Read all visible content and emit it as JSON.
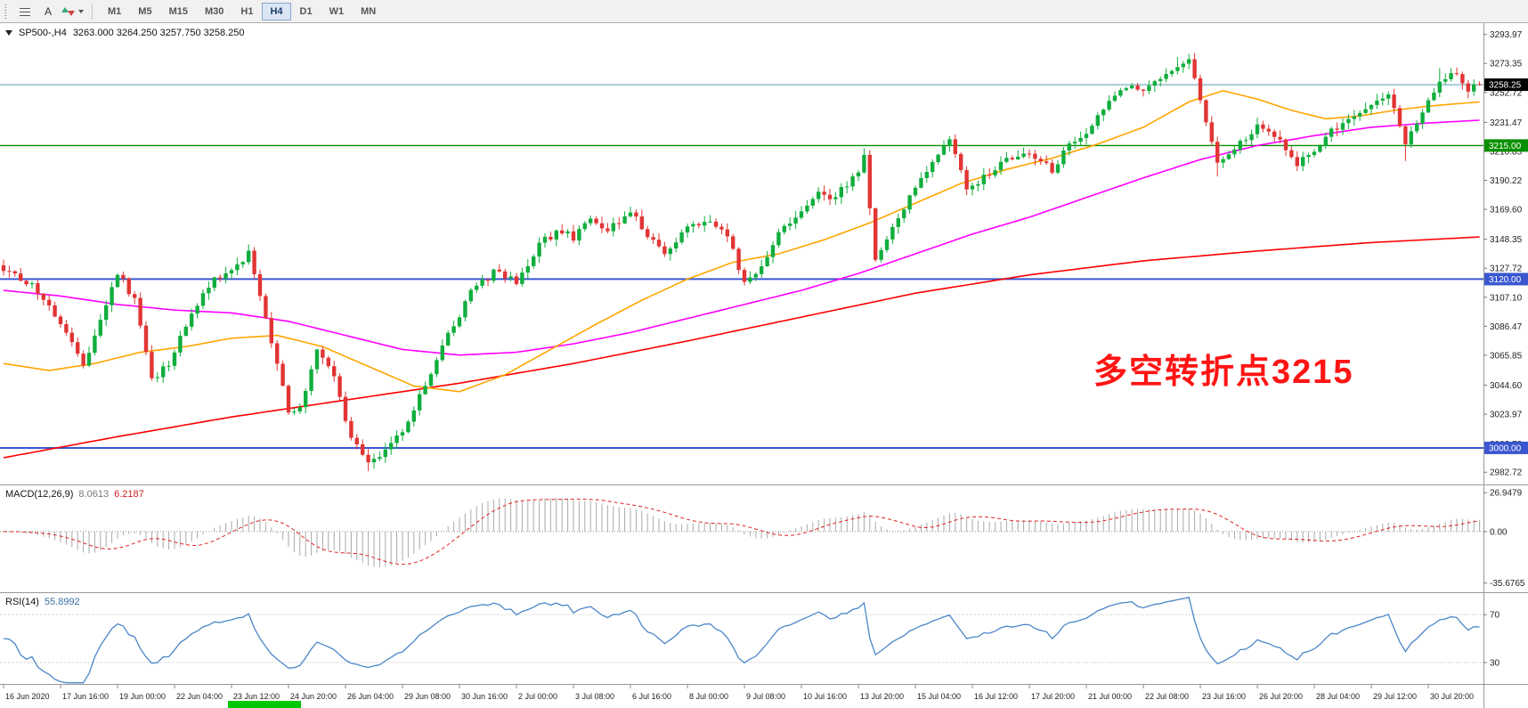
{
  "toolbar": {
    "text_tool_label": "A",
    "timeframes": [
      "M1",
      "M5",
      "M15",
      "M30",
      "H1",
      "H4",
      "D1",
      "W1",
      "MN"
    ],
    "active_timeframe": "H4"
  },
  "chart": {
    "symbol": "SP500-,H4",
    "ohlc": "3263.000 3264.250 3257.750 3258.250",
    "annotation": {
      "text": "多空转折点3215",
      "color": "#ff1414"
    },
    "current_price": {
      "label": "3258.25",
      "value": 3258.25,
      "line_color": "#569bad",
      "badge_color": "#000000"
    },
    "hlines": [
      {
        "value": 3215.0,
        "label": "3215.00",
        "color": "#089000",
        "width": 1.4
      },
      {
        "value": 3120.0,
        "label": "3120.00",
        "color": "#3a57d0",
        "width": 2
      },
      {
        "value": 3000.0,
        "label": "3000.00",
        "color": "#3a57d0",
        "width": 2
      }
    ],
    "axis_labels": [
      "3293.97",
      "3273.35",
      "3252.72",
      "3231.47",
      "3210.85",
      "3190.22",
      "3169.60",
      "3148.35",
      "3127.72",
      "3107.10",
      "3086.47",
      "3065.85",
      "3044.60",
      "3023.97",
      "3002.72",
      "2982.72"
    ],
    "candle_up_color": "#10ae3e",
    "candle_down_color": "#e23434",
    "ma_colors": {
      "fast": "#ffa500",
      "mid": "#ff00ff",
      "slow": "#ff0000"
    }
  },
  "chart_data": {
    "type": "candlestick",
    "symbol": "SP500-",
    "timeframe": "H4",
    "ohlc_current": {
      "open": 3263.0,
      "high": 3264.25,
      "low": 3257.75,
      "close": 3258.25
    },
    "bars": 260,
    "ylim": [
      2974,
      3302
    ],
    "last_close": 3258.25,
    "price_anchors": [
      [
        0,
        3128
      ],
      [
        3,
        3120
      ],
      [
        6,
        3112
      ],
      [
        10,
        3090
      ],
      [
        14,
        3058
      ],
      [
        17,
        3090
      ],
      [
        20,
        3125
      ],
      [
        23,
        3105
      ],
      [
        26,
        3048
      ],
      [
        29,
        3060
      ],
      [
        33,
        3095
      ],
      [
        37,
        3120
      ],
      [
        40,
        3128
      ],
      [
        43,
        3138
      ],
      [
        45,
        3110
      ],
      [
        48,
        3060
      ],
      [
        50,
        3025
      ],
      [
        52,
        3030
      ],
      [
        55,
        3068
      ],
      [
        58,
        3050
      ],
      [
        61,
        3005
      ],
      [
        64,
        2992
      ],
      [
        67,
        2998
      ],
      [
        70,
        3012
      ],
      [
        74,
        3045
      ],
      [
        78,
        3080
      ],
      [
        82,
        3110
      ],
      [
        86,
        3125
      ],
      [
        90,
        3118
      ],
      [
        94,
        3145
      ],
      [
        98,
        3155
      ],
      [
        100,
        3150
      ],
      [
        103,
        3162
      ],
      [
        106,
        3155
      ],
      [
        110,
        3168
      ],
      [
        113,
        3150
      ],
      [
        116,
        3140
      ],
      [
        120,
        3155
      ],
      [
        124,
        3162
      ],
      [
        127,
        3150
      ],
      [
        130,
        3118
      ],
      [
        133,
        3130
      ],
      [
        136,
        3152
      ],
      [
        140,
        3170
      ],
      [
        143,
        3182
      ],
      [
        146,
        3178
      ],
      [
        150,
        3198
      ],
      [
        151,
        3208
      ],
      [
        153,
        3135
      ],
      [
        156,
        3155
      ],
      [
        160,
        3185
      ],
      [
        163,
        3205
      ],
      [
        166,
        3218
      ],
      [
        169,
        3185
      ],
      [
        172,
        3192
      ],
      [
        176,
        3205
      ],
      [
        180,
        3210
      ],
      [
        184,
        3198
      ],
      [
        187,
        3215
      ],
      [
        190,
        3225
      ],
      [
        194,
        3245
      ],
      [
        197,
        3258
      ],
      [
        200,
        3252
      ],
      [
        203,
        3262
      ],
      [
        206,
        3272
      ],
      [
        208,
        3278
      ],
      [
        210,
        3245
      ],
      [
        213,
        3205
      ],
      [
        216,
        3212
      ],
      [
        220,
        3228
      ],
      [
        224,
        3218
      ],
      [
        227,
        3202
      ],
      [
        230,
        3212
      ],
      [
        233,
        3225
      ],
      [
        236,
        3232
      ],
      [
        240,
        3245
      ],
      [
        243,
        3252
      ],
      [
        246,
        3215
      ],
      [
        249,
        3240
      ],
      [
        252,
        3262
      ],
      [
        255,
        3268
      ],
      [
        257,
        3255
      ],
      [
        259,
        3258.25
      ]
    ],
    "high_overrides": [
      [
        151,
        3213
      ],
      [
        206,
        3278
      ],
      [
        252,
        3270
      ]
    ],
    "low_overrides": [
      [
        64,
        2983.5
      ],
      [
        213,
        3193
      ],
      [
        246,
        3204
      ]
    ],
    "ma_fast_anchors": [
      [
        0,
        3060
      ],
      [
        8,
        3055
      ],
      [
        16,
        3060
      ],
      [
        24,
        3068
      ],
      [
        32,
        3072
      ],
      [
        40,
        3078
      ],
      [
        48,
        3080
      ],
      [
        56,
        3072
      ],
      [
        64,
        3058
      ],
      [
        72,
        3044
      ],
      [
        80,
        3040
      ],
      [
        88,
        3052
      ],
      [
        96,
        3070
      ],
      [
        104,
        3088
      ],
      [
        112,
        3105
      ],
      [
        120,
        3120
      ],
      [
        128,
        3132
      ],
      [
        136,
        3138
      ],
      [
        144,
        3148
      ],
      [
        152,
        3160
      ],
      [
        160,
        3174
      ],
      [
        168,
        3188
      ],
      [
        176,
        3198
      ],
      [
        184,
        3206
      ],
      [
        192,
        3216
      ],
      [
        200,
        3228
      ],
      [
        208,
        3246
      ],
      [
        214,
        3254
      ],
      [
        220,
        3248
      ],
      [
        226,
        3240
      ],
      [
        232,
        3234
      ],
      [
        238,
        3236
      ],
      [
        244,
        3240
      ],
      [
        250,
        3243
      ],
      [
        259,
        3246
      ]
    ],
    "ma_mid_anchors": [
      [
        0,
        3112
      ],
      [
        10,
        3108
      ],
      [
        20,
        3102
      ],
      [
        30,
        3098
      ],
      [
        40,
        3096
      ],
      [
        50,
        3090
      ],
      [
        60,
        3080
      ],
      [
        70,
        3070
      ],
      [
        80,
        3066
      ],
      [
        90,
        3068
      ],
      [
        100,
        3074
      ],
      [
        110,
        3082
      ],
      [
        120,
        3092
      ],
      [
        130,
        3102
      ],
      [
        140,
        3112
      ],
      [
        150,
        3124
      ],
      [
        160,
        3138
      ],
      [
        170,
        3152
      ],
      [
        180,
        3164
      ],
      [
        190,
        3178
      ],
      [
        200,
        3192
      ],
      [
        210,
        3205
      ],
      [
        220,
        3215
      ],
      [
        230,
        3222
      ],
      [
        240,
        3228
      ],
      [
        250,
        3231
      ],
      [
        259,
        3233
      ]
    ],
    "ma_slow_anchors": [
      [
        0,
        2993
      ],
      [
        20,
        3008
      ],
      [
        40,
        3022
      ],
      [
        60,
        3034
      ],
      [
        80,
        3046
      ],
      [
        100,
        3060
      ],
      [
        120,
        3076
      ],
      [
        140,
        3093
      ],
      [
        160,
        3110
      ],
      [
        180,
        3123
      ],
      [
        200,
        3133
      ],
      [
        220,
        3140
      ],
      [
        240,
        3146
      ],
      [
        259,
        3150
      ]
    ],
    "x_tick_labels": [
      "16 Jun 2020",
      "17 Jun 16:00",
      "19 Jun 00:00",
      "22 Jun 04:00",
      "23 Jun 12:00",
      "24 Jun 20:00",
      "26 Jun 04:00",
      "29 Jun 08:00",
      "30 Jun 16:00",
      "2 Jul 00:00",
      "3 Jul 08:00",
      "6 Jul 16:00",
      "8 Jul 00:00",
      "9 Jul 08:00",
      "10 Jul 16:00",
      "13 Jul 20:00",
      "15 Jul 04:00",
      "16 Jul 12:00",
      "17 Jul 20:00",
      "21 Jul 00:00",
      "22 Jul 08:00",
      "23 Jul 16:00",
      "26 Jul 20:00",
      "28 Jul 04:00",
      "29 Jul 12:00",
      "30 Jul 20:00"
    ]
  },
  "macd": {
    "name": "MACD(12,26,9)",
    "value_main": "8.0613",
    "value_signal": "6.2187",
    "axis": [
      {
        "text": "26.9479",
        "value": 26.9479
      },
      {
        "text": "0.00",
        "value": 0
      },
      {
        "text": "-35.6765",
        "value": -35.6765
      }
    ],
    "ylim": [
      -42,
      32
    ],
    "histogram_color": "#a9a9a9",
    "signal_color": "#dd2222"
  },
  "rsi": {
    "name": "RSI(14)",
    "value": "55.8992",
    "levels": [
      70,
      30
    ],
    "ylim": [
      12,
      88
    ],
    "line_color": "#4a86c8"
  },
  "misc": {
    "bottom_bar_color": "#00c800"
  }
}
